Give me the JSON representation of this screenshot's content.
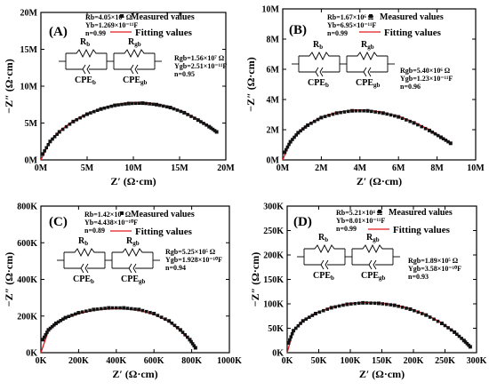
{
  "panels": [
    {
      "id": "A",
      "label": "(A)",
      "x_ticks": [
        "0M",
        "5M",
        "10M",
        "15M",
        "20M"
      ],
      "y_ticks": [
        "0M",
        "5M",
        "10M",
        "15M",
        "20M"
      ],
      "xlabel": "Z′ (Ω·cm)",
      "ylabel": "−Z″ (Ω·cm)",
      "params_left": [
        "Rb=4.05×10⁶ Ω",
        "Yb=1.269×10⁻¹¹F",
        "n=0.99"
      ],
      "params_right": [
        "Rgb=1.56×10⁷ Ω",
        "Ygb=2.51×10⁻¹¹F",
        "n=0.95"
      ],
      "legend": {
        "measured": "Measured values",
        "fitting": "Fitting values"
      },
      "circuit": {
        "rb": "R",
        "rb_sub": "b",
        "rgb": "R",
        "rgb_sub": "gb",
        "cpeb": "CPE",
        "cpeb_sub": "b",
        "cpegb": "CPE",
        "cpegb_sub": "gb"
      }
    },
    {
      "id": "B",
      "label": "(B)",
      "x_ticks": [
        "0M",
        "2M",
        "4M",
        "6M",
        "8M",
        "10M"
      ],
      "y_ticks": [
        "0M",
        "2M",
        "4M",
        "6M",
        "8M",
        "10M"
      ],
      "xlabel": "Z′ (Ω·cm)",
      "ylabel": "−Z″ (Ω·cm)",
      "params_left": [
        "Rb=1.67×10⁶ Ω",
        "Yb=6.95×10⁻¹¹F",
        "n=0.99"
      ],
      "params_right": [
        "Rgb=5.40×10⁶ Ω",
        "Ygb=1.23×10⁻¹¹F",
        "n=0.96"
      ],
      "legend": {
        "measured": "Measured values",
        "fitting": "Fitting values"
      },
      "circuit": {
        "rb": "R",
        "rb_sub": "b",
        "rgb": "R",
        "rgb_sub": "gb",
        "cpeb": "CPE",
        "cpeb_sub": "b",
        "cpegb": "CPE",
        "cpegb_sub": "gb"
      }
    },
    {
      "id": "C",
      "label": "(C)",
      "x_ticks": [
        "0K",
        "200K",
        "400K",
        "600K",
        "800K",
        "1000K"
      ],
      "y_ticks": [
        "0K",
        "200K",
        "400K",
        "600K",
        "800K"
      ],
      "xlabel": "Z′ (Ω·cm)",
      "ylabel": "−Z″ (Ω·cm)",
      "params_left": [
        "Rb=1.42×10⁵ Ω",
        "Yb=4.438×10⁻¹⁰F",
        "n=0.89"
      ],
      "params_right": [
        "Rgb=5.25×10⁵ Ω",
        "Ygb=1.928×10⁻¹⁰F",
        "n=0.94"
      ],
      "legend": {
        "measured": "Measured values",
        "fitting": "Fitting values"
      },
      "circuit": {
        "rb": "R",
        "rb_sub": "b",
        "rgb": "R",
        "rgb_sub": "gb",
        "cpeb": "CPE",
        "cpeb_sub": "b",
        "cpegb": "CPE",
        "cpegb_sub": "gb"
      }
    },
    {
      "id": "D",
      "label": "(D)",
      "x_ticks": [
        "0K",
        "50K",
        "100K",
        "150K",
        "200K",
        "250K",
        "300K"
      ],
      "y_ticks": [
        "0K",
        "50K",
        "100K",
        "150K",
        "200K",
        "250K",
        "300K"
      ],
      "xlabel": "Z′ (Ω·cm)",
      "ylabel": "−Z″ (Ω·cm)",
      "params_left": [
        "Rb=5.21×10⁴ Ω",
        "Yb=8.01×10⁻¹¹F",
        "n=0.99"
      ],
      "params_right": [
        "Rgb=1.89×10⁵ Ω",
        "Ygb=3.58×10⁻¹⁰F",
        "n=0.93"
      ],
      "legend": {
        "measured": "Measured values",
        "fitting": "Fitting values"
      },
      "circuit": {
        "rb": "R",
        "rb_sub": "b",
        "rgb": "R",
        "rgb_sub": "gb",
        "cpeb": "CPE",
        "cpeb_sub": "b",
        "cpegb": "CPE",
        "cpegb_sub": "gb"
      }
    }
  ],
  "colors": {
    "measured": "#111111",
    "fitting": "#e0191f",
    "axis": "#000000"
  },
  "chart_data": [
    {
      "type": "scatter",
      "title": "(A)",
      "xlabel": "Z′ (Ω·cm)",
      "ylabel": "−Z″ (Ω·cm)",
      "xlim": [
        0,
        20000000
      ],
      "ylim": [
        0,
        20000000
      ],
      "series": [
        {
          "name": "Measured values",
          "style": "squares",
          "x": [
            200000,
            1000000,
            2000000,
            3500000,
            5000000,
            6500000,
            8000000,
            9500000,
            11000000,
            12500000,
            14000000,
            15500000,
            17000000,
            18200000,
            19000000
          ],
          "y": [
            800000,
            2500000,
            3800000,
            5200000,
            6200000,
            6900000,
            7400000,
            7650000,
            7700000,
            7500000,
            7100000,
            6400000,
            5400000,
            4500000,
            3800000
          ]
        },
        {
          "name": "Fitting values",
          "style": "line",
          "x": [
            0,
            1000000,
            2000000,
            3500000,
            5000000,
            6500000,
            8000000,
            9500000,
            11000000,
            12500000,
            14000000,
            15500000,
            17000000,
            18200000,
            19000000
          ],
          "y": [
            0,
            2600000,
            3900000,
            5300000,
            6300000,
            7000000,
            7500000,
            7750000,
            7800000,
            7600000,
            7200000,
            6500000,
            5500000,
            4600000,
            3900000
          ]
        }
      ]
    },
    {
      "type": "scatter",
      "title": "(B)",
      "xlabel": "Z′ (Ω·cm)",
      "ylabel": "−Z″ (Ω·cm)",
      "xlim": [
        0,
        10000000
      ],
      "ylim": [
        0,
        10000000
      ],
      "series": [
        {
          "name": "Measured values",
          "style": "squares",
          "x": [
            100000,
            400000,
            800000,
            1300000,
            2000000,
            2800000,
            3600000,
            4400000,
            5200000,
            6000000,
            6800000,
            7600000,
            8200000,
            8700000
          ],
          "y": [
            500000,
            1200000,
            1800000,
            2300000,
            2800000,
            3100000,
            3250000,
            3250000,
            3100000,
            2850000,
            2450000,
            1950000,
            1500000,
            1100000
          ]
        },
        {
          "name": "Fitting values",
          "style": "line",
          "x": [
            0,
            400000,
            800000,
            1300000,
            2000000,
            2800000,
            3600000,
            4400000,
            5200000,
            6000000,
            6800000,
            7600000,
            8200000,
            8700000
          ],
          "y": [
            0,
            1250000,
            1850000,
            2350000,
            2850000,
            3150000,
            3300000,
            3300000,
            3150000,
            2900000,
            2500000,
            2000000,
            1550000,
            1150000
          ]
        }
      ]
    },
    {
      "type": "scatter",
      "title": "(C)",
      "xlabel": "Z′ (Ω·cm)",
      "ylabel": "−Z″ (Ω·cm)",
      "xlim": [
        0,
        1000000
      ],
      "ylim": [
        0,
        900000
      ],
      "series": [
        {
          "name": "Measured values",
          "style": "squares",
          "x": [
            10000,
            40000,
            80000,
            130000,
            200000,
            280000,
            360000,
            440000,
            520000,
            600000,
            680000,
            740000,
            790000,
            820000
          ],
          "y": [
            80000,
            140000,
            180000,
            215000,
            245000,
            265000,
            275000,
            275000,
            265000,
            240000,
            195000,
            140000,
            80000,
            30000
          ]
        },
        {
          "name": "Fitting values",
          "style": "line",
          "x": [
            0,
            40000,
            80000,
            130000,
            200000,
            280000,
            360000,
            440000,
            520000,
            600000,
            680000,
            740000,
            790000,
            820000
          ],
          "y": [
            0,
            135000,
            175000,
            210000,
            240000,
            260000,
            270000,
            270000,
            260000,
            235000,
            190000,
            135000,
            75000,
            25000
          ]
        }
      ]
    },
    {
      "type": "scatter",
      "title": "(D)",
      "xlabel": "Z′ (Ω·cm)",
      "ylabel": "−Z″ (Ω·cm)",
      "xlim": [
        0,
        300000
      ],
      "ylim": [
        0,
        300000
      ],
      "series": [
        {
          "name": "Measured values",
          "style": "squares",
          "x": [
            2000,
            10000,
            25000,
            45000,
            70000,
            95000,
            120000,
            145000,
            170000,
            195000,
            220000,
            245000,
            265000,
            280000,
            290000
          ],
          "y": [
            20000,
            45000,
            65000,
            80000,
            92000,
            99000,
            102000,
            101000,
            97000,
            89000,
            77000,
            60000,
            42000,
            25000,
            12000
          ]
        },
        {
          "name": "Fitting values",
          "style": "line",
          "x": [
            0,
            10000,
            25000,
            45000,
            70000,
            95000,
            120000,
            145000,
            170000,
            195000,
            220000,
            245000,
            265000,
            280000,
            290000
          ],
          "y": [
            0,
            46000,
            66000,
            81000,
            93000,
            100000,
            103000,
            102000,
            98000,
            90000,
            78000,
            61000,
            43000,
            26000,
            13000
          ]
        }
      ]
    }
  ]
}
